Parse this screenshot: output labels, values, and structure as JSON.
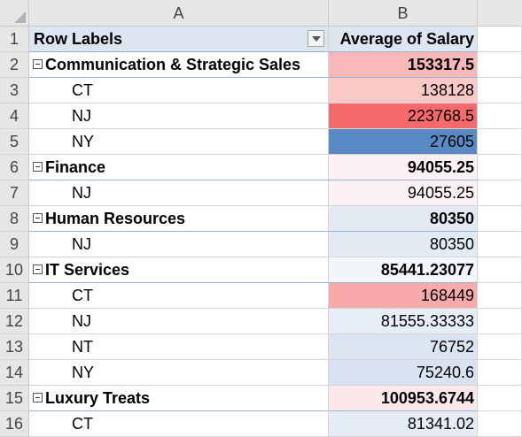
{
  "columns": [
    "A",
    "B"
  ],
  "header": {
    "row": "1",
    "row_labels": "Row Labels",
    "value_header": "Average of Salary"
  },
  "rows": [
    {
      "num": "2",
      "label": "Communication & Strategic Sales",
      "value": "153317.5",
      "group": true,
      "fill": "#f8b8b8"
    },
    {
      "num": "3",
      "label": "CT",
      "value": "138128",
      "group": false,
      "fill": "#fbc8c8"
    },
    {
      "num": "4",
      "label": "NJ",
      "value": "223768.5",
      "group": false,
      "fill": "#f8696b"
    },
    {
      "num": "5",
      "label": "NY",
      "value": "27605",
      "group": false,
      "fill": "#5a8ac6"
    },
    {
      "num": "6",
      "label": "Finance",
      "value": "94055.25",
      "group": true,
      "fill": "#fcf2f4"
    },
    {
      "num": "7",
      "label": "NJ",
      "value": "94055.25",
      "group": false,
      "fill": "#fcf2f4"
    },
    {
      "num": "8",
      "label": "Human Resources",
      "value": "80350",
      "group": true,
      "fill": "#e3eaf4"
    },
    {
      "num": "9",
      "label": "NJ",
      "value": "80350",
      "group": false,
      "fill": "#e3eaf4"
    },
    {
      "num": "10",
      "label": "IT Services",
      "value": "85441.23077",
      "group": true,
      "fill": "#f2f5fa"
    },
    {
      "num": "11",
      "label": "CT",
      "value": "168449",
      "group": false,
      "fill": "#f8a9aa"
    },
    {
      "num": "12",
      "label": "NJ",
      "value": "81555.33333",
      "group": false,
      "fill": "#e7edf6"
    },
    {
      "num": "13",
      "label": "NT",
      "value": "76752",
      "group": false,
      "fill": "#dbe4f1"
    },
    {
      "num": "14",
      "label": "NY",
      "value": "75240.6",
      "group": false,
      "fill": "#d8e2f0"
    },
    {
      "num": "15",
      "label": "Luxury Treats",
      "value": "100953.6744",
      "group": true,
      "fill": "#fce8ea"
    },
    {
      "num": "16",
      "label": "CT",
      "value": "81341.02",
      "group": false,
      "fill": "#e6ecf5"
    }
  ]
}
